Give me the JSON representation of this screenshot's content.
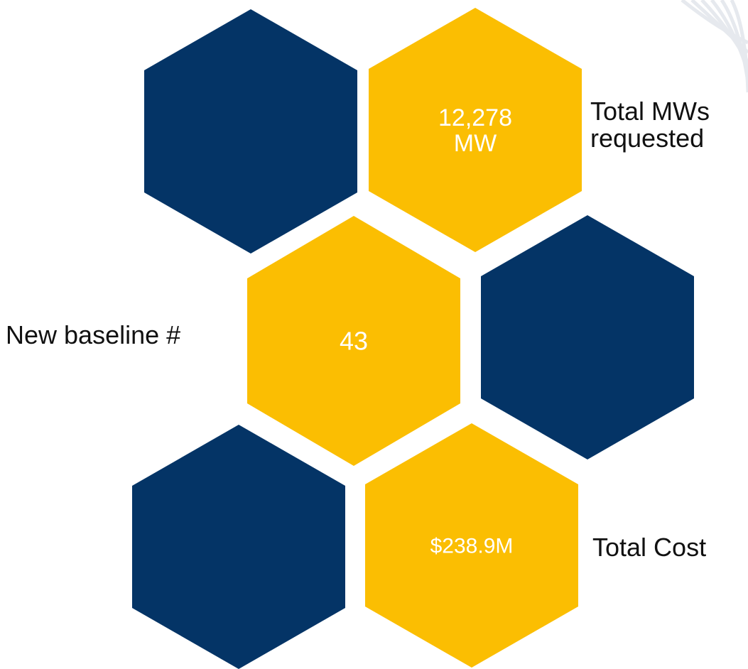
{
  "colors": {
    "navy": "#043466",
    "gold": "#FBBE02",
    "value_text": "#ffffff",
    "label_text": "#111111",
    "background": "#ffffff",
    "swoosh": "#e6e9ee"
  },
  "hexagons": [
    {
      "name": "hex-top-left-navy",
      "fill": "navy",
      "value": ""
    },
    {
      "name": "hex-top-right-gold",
      "fill": "gold",
      "value": "12,278\nMW"
    },
    {
      "name": "hex-middle-left-gold",
      "fill": "gold",
      "value": "43"
    },
    {
      "name": "hex-middle-right-navy",
      "fill": "navy",
      "value": ""
    },
    {
      "name": "hex-bottom-left-navy",
      "fill": "navy",
      "value": ""
    },
    {
      "name": "hex-bottom-right-gold",
      "fill": "gold",
      "value": "$238.9M"
    }
  ],
  "labels": {
    "total_mws": "Total MWs\nrequested",
    "new_baseline": "New baseline #",
    "total_cost": "Total Cost"
  }
}
